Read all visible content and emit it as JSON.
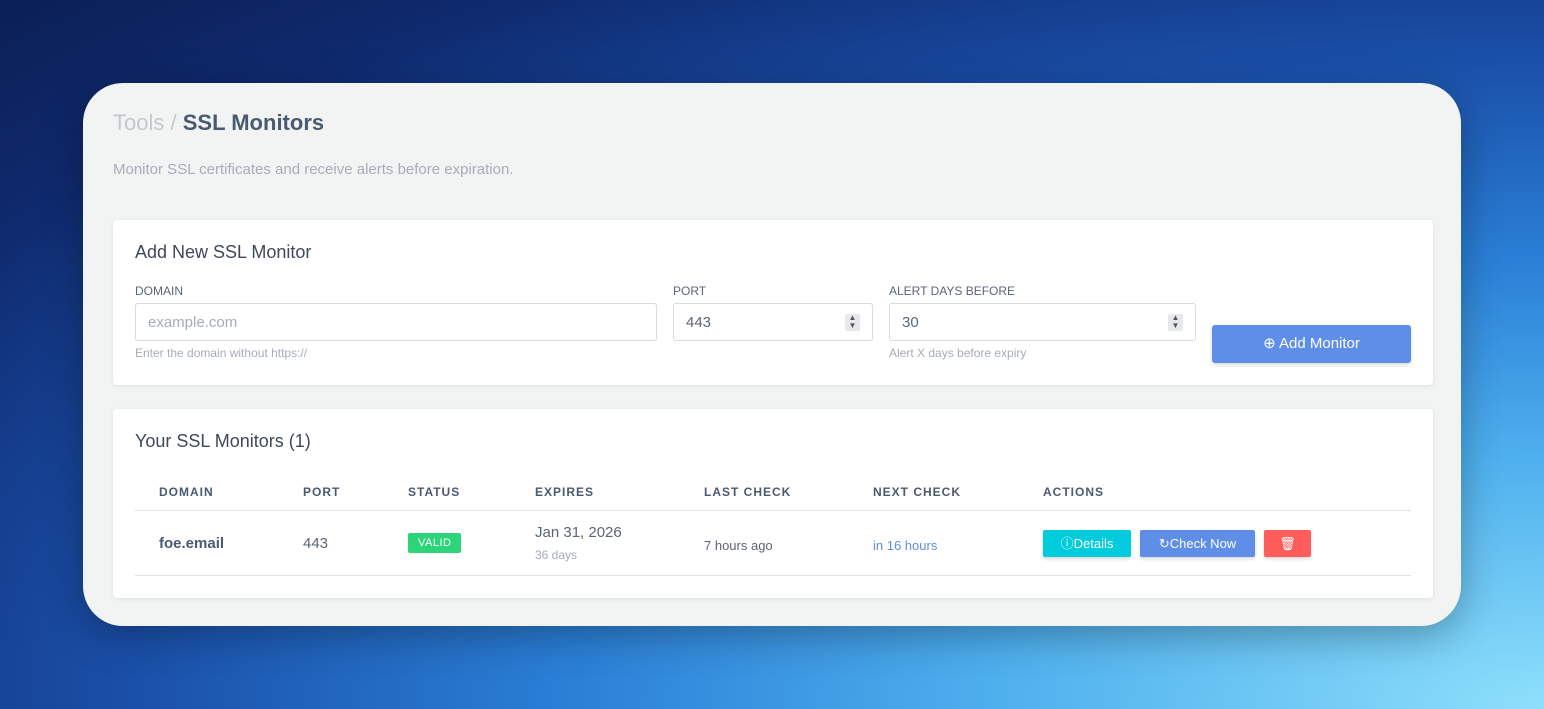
{
  "breadcrumb": {
    "parent": "Tools",
    "separator": "/",
    "current": "SSL Monitors"
  },
  "subtitle": "Monitor SSL certificates and receive alerts before expiration.",
  "add_form": {
    "title": "Add New SSL Monitor",
    "domain": {
      "label": "DOMAIN",
      "placeholder": "example.com",
      "value": "",
      "help": "Enter the domain without https://"
    },
    "port": {
      "label": "PORT",
      "value": "443"
    },
    "alert_days": {
      "label": "ALERT DAYS BEFORE",
      "value": "30",
      "help": "Alert X days before expiry"
    },
    "submit_label": "Add Monitor"
  },
  "monitors": {
    "title": "Your SSL Monitors (1)",
    "columns": [
      "DOMAIN",
      "PORT",
      "STATUS",
      "EXPIRES",
      "LAST CHECK",
      "NEXT CHECK",
      "ACTIONS"
    ],
    "rows": [
      {
        "domain": "foe.email",
        "port": "443",
        "status": "VALID",
        "expires": "Jan 31, 2026",
        "expires_in": "36 days",
        "last_check": "7 hours ago",
        "next_check": "in 16 hours",
        "details_label": "Details",
        "check_label": "Check Now"
      }
    ]
  },
  "colors": {
    "accent": "#5e8ee8",
    "valid": "#2ed47a",
    "details": "#00ccdd",
    "delete": "#ff5c5c"
  }
}
